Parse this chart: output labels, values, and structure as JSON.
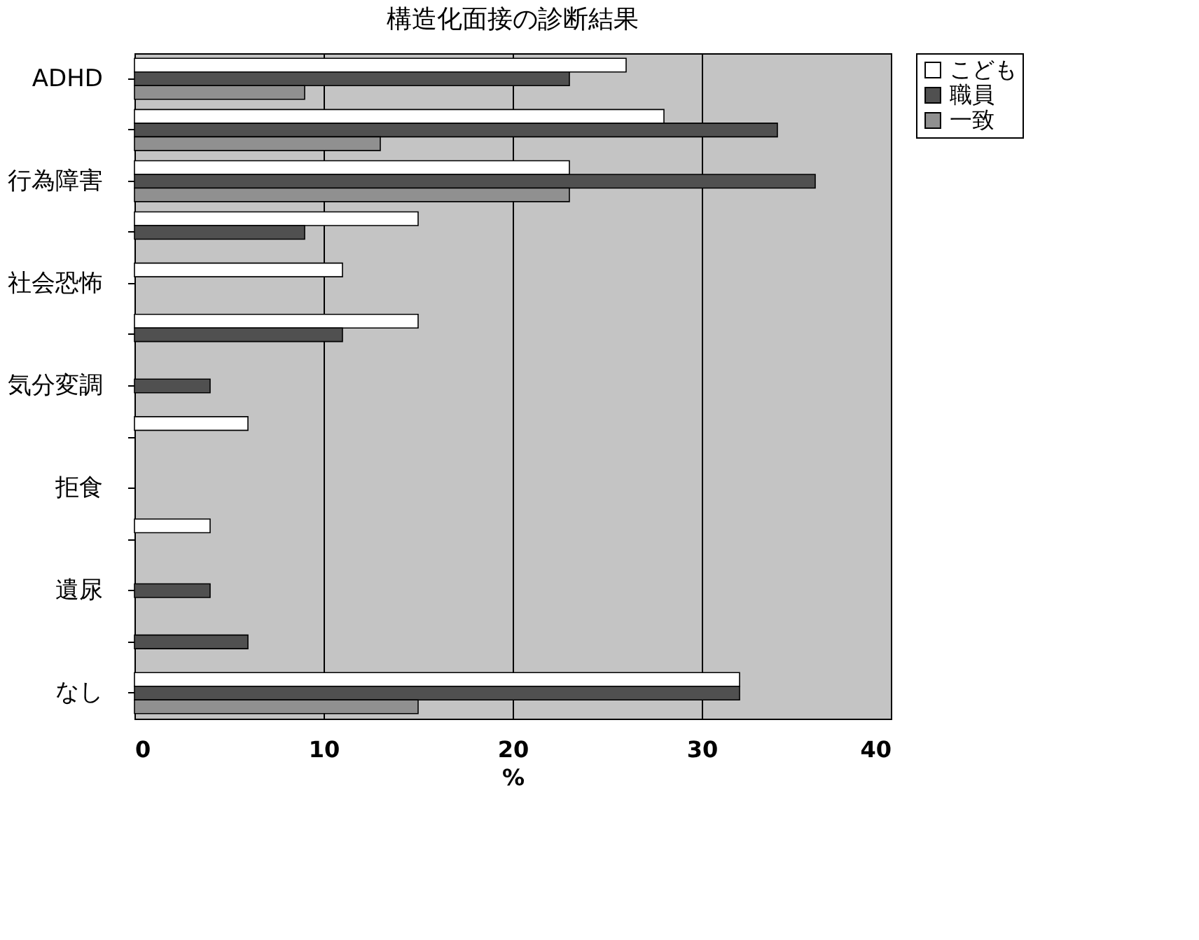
{
  "chart_data": {
    "type": "bar",
    "orientation": "horizontal",
    "title": "構造化面接の診断結果",
    "xlabel": "%",
    "categories": [
      "ADHD",
      null,
      "行為障害",
      null,
      "社会恐怖",
      null,
      "気分変調",
      null,
      "拒食",
      null,
      "遺尿",
      null,
      "なし"
    ],
    "series": [
      {
        "name": "こども",
        "color": "#ffffff",
        "values": [
          26,
          28,
          23,
          15,
          11,
          15,
          0,
          6,
          0,
          4,
          0,
          0,
          32
        ]
      },
      {
        "name": "職員",
        "color": "#505050",
        "values": [
          23,
          34,
          36,
          9,
          0,
          11,
          4,
          0,
          0,
          0,
          4,
          6,
          32
        ]
      },
      {
        "name": "一致",
        "color": "#909090",
        "values": [
          9,
          13,
          23,
          0,
          0,
          0,
          0,
          0,
          0,
          0,
          0,
          0,
          15
        ]
      }
    ],
    "xlim": [
      0,
      40
    ],
    "xticks": [
      0,
      10,
      20,
      30,
      40
    ],
    "grid": "x",
    "legend": "right"
  }
}
